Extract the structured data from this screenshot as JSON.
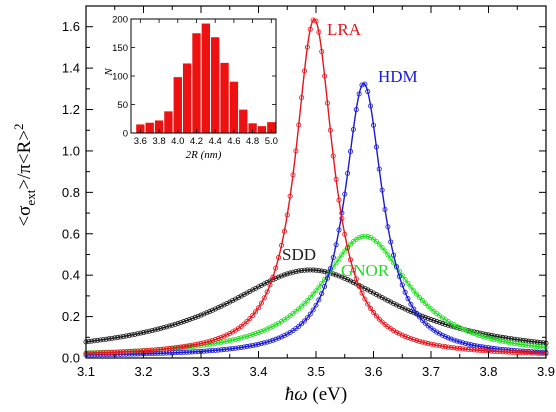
{
  "chart_data": [
    {
      "type": "line",
      "xlabel_parts": [
        "ħω",
        " (eV)"
      ],
      "ylabel_parts": [
        "<σ",
        "ext",
        ">/π<R>",
        "2"
      ],
      "xlim": [
        3.1,
        3.9
      ],
      "ylim": [
        0.0,
        1.7
      ],
      "xticks": [
        "3.1",
        "3.2",
        "3.3",
        "3.4",
        "3.5",
        "3.6",
        "3.7",
        "3.8",
        "3.9"
      ],
      "yticks": [
        "0.0",
        "0.2",
        "0.4",
        "0.6",
        "0.8",
        "1.0",
        "1.2",
        "1.4",
        "1.6"
      ],
      "grid": false,
      "markers": "open circles on every curve",
      "series": [
        {
          "name": "LRA",
          "color": "#e8141c",
          "peak_x": 3.497,
          "peak_y": 1.63,
          "half_width_eV": 0.04,
          "baseline": 0.006
        },
        {
          "name": "HDM",
          "color": "#1a1ad6",
          "peak_x": 3.583,
          "peak_y": 1.32,
          "half_width_eV": 0.04,
          "baseline": 0.006
        },
        {
          "name": "GNOR",
          "color": "#22dd22",
          "peak_x": 3.585,
          "peak_y": 0.585,
          "half_width_eV": 0.094,
          "baseline": 0.003
        },
        {
          "name": "SDD",
          "color": "#1e1e1e",
          "peak_x": 3.49,
          "peak_y": 0.425,
          "half_width_eV": 0.185,
          "baseline": 0.0
        }
      ]
    },
    {
      "type": "bar",
      "inset": true,
      "color": "#ee1111",
      "xlabel": "2R (nm)",
      "ylabel": "N",
      "xlim": [
        3.5,
        5.05
      ],
      "ylim": [
        0,
        200
      ],
      "xticks": [
        "3.6",
        "3.8",
        "4.0",
        "4.2",
        "4.4",
        "4.6",
        "4.8",
        "5.0"
      ],
      "yticks": [
        "0",
        "50",
        "100",
        "150",
        "200"
      ],
      "bin_width": 0.1,
      "bins": [
        3.6,
        3.7,
        3.8,
        3.9,
        4.0,
        4.1,
        4.2,
        4.3,
        4.4,
        4.5,
        4.6,
        4.7,
        4.8,
        4.9,
        5.0
      ],
      "values": [
        15,
        18,
        22,
        38,
        98,
        122,
        175,
        192,
        168,
        123,
        90,
        41,
        17,
        12,
        19
      ]
    }
  ]
}
